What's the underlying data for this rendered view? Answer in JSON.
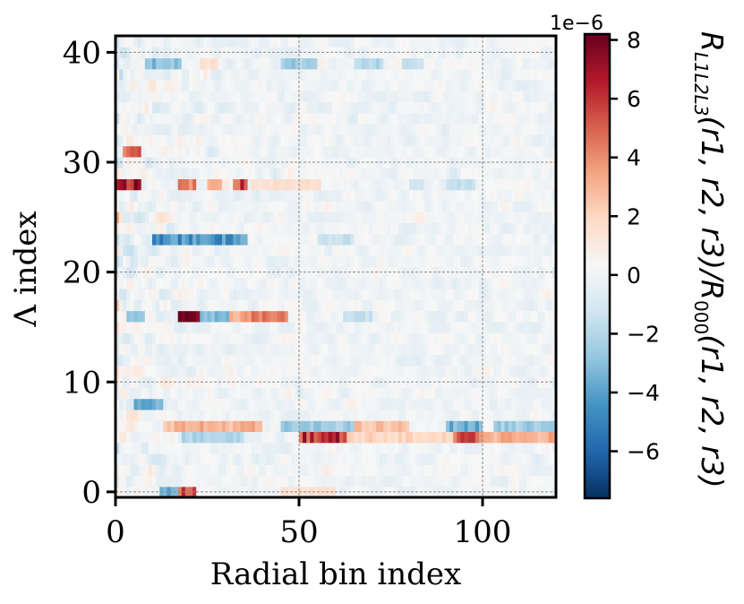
{
  "chart_data": {
    "type": "heatmap",
    "xlabel": "Radial bin index",
    "ylabel": "Λ index",
    "xlim": [
      0,
      120
    ],
    "ylim": [
      -0.5,
      41.5
    ],
    "xticks": [
      0,
      50,
      100
    ],
    "yticks": [
      0,
      10,
      20,
      30,
      40
    ],
    "grid": true,
    "colormap": "RdBu_r",
    "colorbar": {
      "label": "R_{L1L2L3}(r1,r2,r3)/R_000(r1,r2,r3)",
      "label_parts": {
        "main": "R",
        "subscript": "L1L2L3",
        "seg1": "(r1, r2, r3)/R",
        "sub2": "000",
        "seg2": "(r1, r2, r3)"
      },
      "scale_label": "1e−6",
      "range": [
        -7.6,
        8.2
      ],
      "ticks": [
        8,
        6,
        4,
        2,
        0,
        -2,
        -4,
        -6
      ],
      "tick_labels": [
        "8",
        "6",
        "4",
        "2",
        "0",
        "−2",
        "−4",
        "−6"
      ],
      "colors": [
        "#053061",
        "#2166ac",
        "#4393c3",
        "#92c5de",
        "#d1e5f0",
        "#f7f7f7",
        "#fddbc7",
        "#f4a582",
        "#d6604d",
        "#b2182b",
        "#67001f"
      ]
    },
    "features": [
      {
        "lambda": 39,
        "x0": 8,
        "x1": 18,
        "value": -3.0
      },
      {
        "lambda": 39,
        "x0": 45,
        "x1": 55,
        "value": -2.5
      },
      {
        "lambda": 39,
        "x0": 65,
        "x1": 73,
        "value": -2.0
      },
      {
        "lambda": 39,
        "x0": 78,
        "x1": 84,
        "value": -1.5
      },
      {
        "lambda": 39,
        "x0": 23,
        "x1": 28,
        "value": 1.5
      },
      {
        "lambda": 31,
        "x0": 2,
        "x1": 7,
        "value": 4.5
      },
      {
        "lambda": 28,
        "x0": 0,
        "x1": 7,
        "value": 6.5
      },
      {
        "lambda": 28,
        "x0": 17,
        "x1": 22,
        "value": 4.5
      },
      {
        "lambda": 28,
        "x0": 25,
        "x1": 29,
        "value": 3.5
      },
      {
        "lambda": 28,
        "x0": 32,
        "x1": 36,
        "value": 5.5
      },
      {
        "lambda": 28,
        "x0": 37,
        "x1": 56,
        "value": 1.5
      },
      {
        "lambda": 28,
        "x0": 90,
        "x1": 98,
        "value": -1.5
      },
      {
        "lambda": 28,
        "x0": 80,
        "x1": 84,
        "value": -1.5
      },
      {
        "lambda": 23,
        "x0": 10,
        "x1": 36,
        "value": -4.5
      },
      {
        "lambda": 23,
        "x0": 55,
        "x1": 65,
        "value": -1.5
      },
      {
        "lambda": 16,
        "x0": 17,
        "x1": 23,
        "value": 7.5
      },
      {
        "lambda": 16,
        "x0": 23,
        "x1": 31,
        "value": -3.0
      },
      {
        "lambda": 16,
        "x0": 31,
        "x1": 37,
        "value": 3.5
      },
      {
        "lambda": 16,
        "x0": 37,
        "x1": 47,
        "value": 5.0
      },
      {
        "lambda": 16,
        "x0": 3,
        "x1": 8,
        "value": -2.5
      },
      {
        "lambda": 16,
        "x0": 62,
        "x1": 70,
        "value": -1.5
      },
      {
        "lambda": 8,
        "x0": 5,
        "x1": 13,
        "value": -3.5
      },
      {
        "lambda": 6,
        "x0": 13,
        "x1": 40,
        "value": 3.0
      },
      {
        "lambda": 6,
        "x0": 45,
        "x1": 65,
        "value": -2.5
      },
      {
        "lambda": 6,
        "x0": 65,
        "x1": 80,
        "value": 2.5
      },
      {
        "lambda": 6,
        "x0": 90,
        "x1": 100,
        "value": -3.5
      },
      {
        "lambda": 6,
        "x0": 103,
        "x1": 120,
        "value": -2.5
      },
      {
        "lambda": 5,
        "x0": 50,
        "x1": 63,
        "value": 6.0
      },
      {
        "lambda": 5,
        "x0": 92,
        "x1": 100,
        "value": 5.0
      },
      {
        "lambda": 5,
        "x0": 100,
        "x1": 120,
        "value": 3.0
      },
      {
        "lambda": 5,
        "x0": 63,
        "x1": 92,
        "value": 2.0
      },
      {
        "lambda": 5,
        "x0": 18,
        "x1": 35,
        "value": -2.0
      },
      {
        "lambda": 0,
        "x0": 12,
        "x1": 18,
        "value": -3.5
      },
      {
        "lambda": 0,
        "x0": 17,
        "x1": 22,
        "value": 5.5
      },
      {
        "lambda": 0,
        "x0": 45,
        "x1": 60,
        "value": 1.5
      }
    ]
  }
}
